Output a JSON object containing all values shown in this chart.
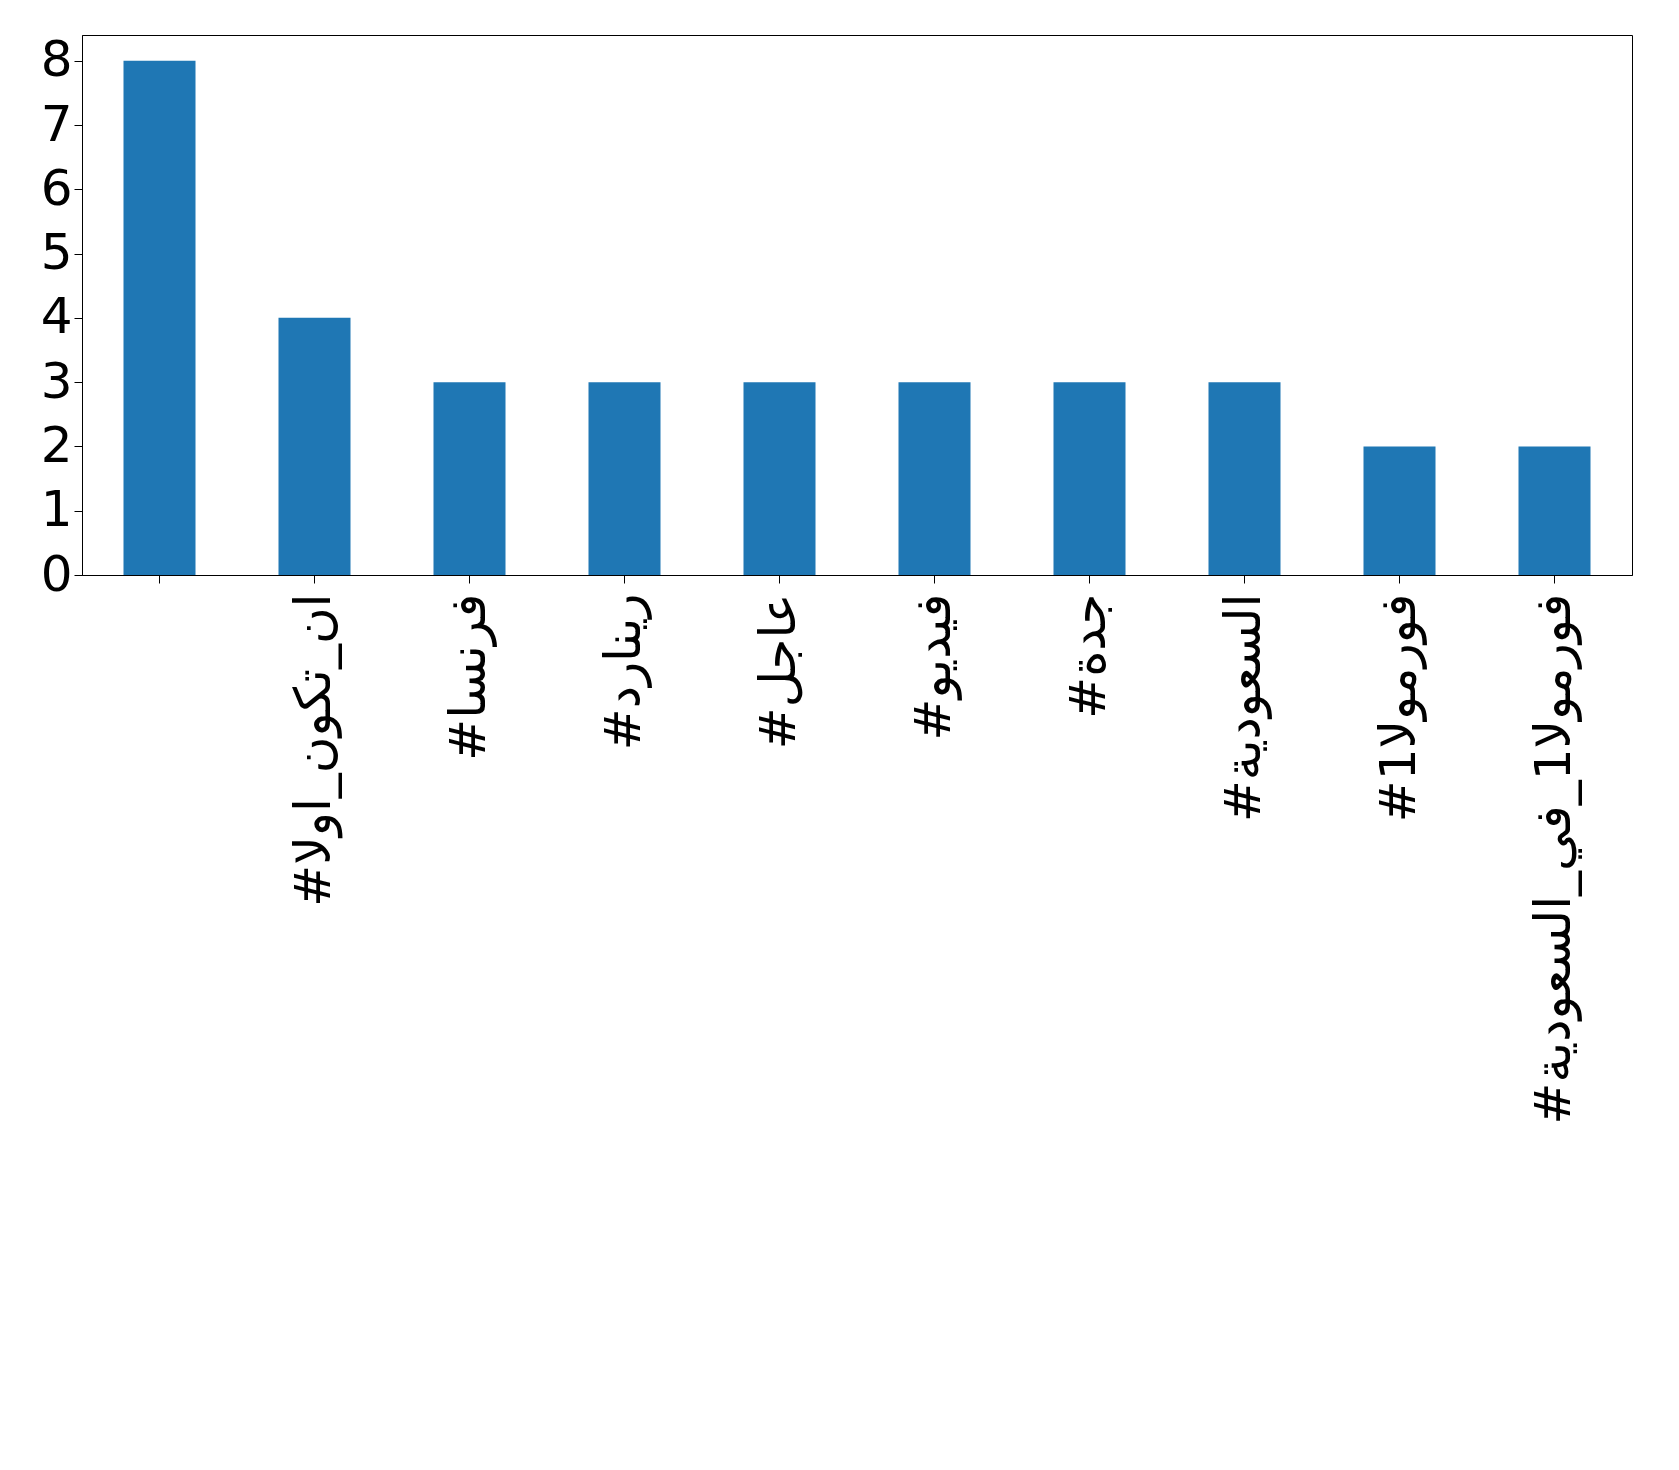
{
  "chart_data": {
    "type": "bar",
    "categories": [
      null,
      "#ان_تكون_اولا",
      "#فرنسا",
      "#رينارد",
      "#عاجل",
      "#فيديو",
      "#جدة",
      "#السعودية",
      "#فورمولا1",
      "#فورمولا1_في_السعودية"
    ],
    "values": [
      8,
      4,
      3,
      3,
      3,
      3,
      3,
      3,
      2,
      2
    ],
    "color": "#1f77b4",
    "ylim": [
      0,
      8.4
    ],
    "yticks": [
      0,
      1,
      2,
      3,
      4,
      5,
      6,
      7,
      8
    ],
    "grid": false
  }
}
